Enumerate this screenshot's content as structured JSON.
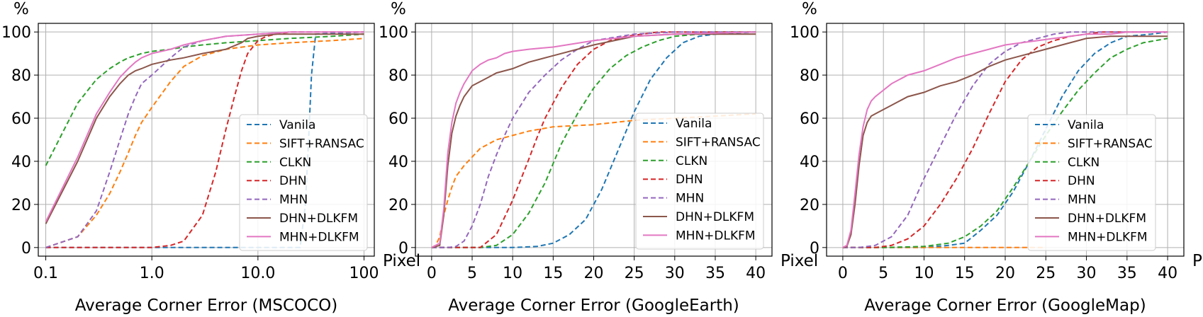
{
  "legend_labels": [
    "Vanila",
    "SIFT+RANSAC",
    "CLKN",
    "DHN",
    "MHN",
    "DHN+DLKFM",
    "MHN+DLKFM"
  ],
  "colors": {
    "Vanila": "#1f77b4",
    "SIFT+RANSAC": "#ff7f0e",
    "CLKN": "#2ca02c",
    "DHN": "#d62728",
    "MHN": "#9467bd",
    "DHN+DLKFM": "#8c564b",
    "MHN+DLKFM": "#e377c2"
  },
  "dashed": {
    "Vanila": true,
    "SIFT+RANSAC": true,
    "CLKN": true,
    "DHN": true,
    "MHN": true,
    "DHN+DLKFM": false,
    "MHN+DLKFM": false
  },
  "chart_data": [
    {
      "type": "line",
      "xlabel": "Average Corner Error (MSCOCO)",
      "ylabel": "%",
      "x_unit": "Pixel",
      "xscale": "log",
      "xlim": [
        0.085,
        125
      ],
      "ylim": [
        -4,
        104
      ],
      "xticks": [
        0.1,
        1,
        10,
        100
      ],
      "xtick_labels": [
        "0.1",
        "1.0",
        "10.0",
        "100"
      ],
      "yticks": [
        0,
        20,
        40,
        60,
        80,
        100
      ],
      "ytick_labels": [
        "0",
        "20",
        "40",
        "60",
        "80",
        "100"
      ],
      "legend_position": "center-right",
      "series": [
        {
          "name": "Vanila",
          "x": [
            0.1,
            1,
            10,
            25,
            28,
            30,
            32,
            35,
            100
          ],
          "y": [
            0,
            0,
            0,
            0,
            20,
            50,
            80,
            99,
            100
          ]
        },
        {
          "name": "SIFT+RANSAC",
          "x": [
            0.1,
            0.2,
            0.3,
            0.4,
            0.5,
            0.6,
            0.7,
            0.8,
            1,
            1.5,
            2,
            3,
            5,
            10,
            20,
            50,
            100
          ],
          "y": [
            0,
            5,
            15,
            25,
            35,
            44,
            52,
            58,
            65,
            77,
            84,
            89,
            92,
            94,
            95,
            96,
            97
          ]
        },
        {
          "name": "CLKN",
          "x": [
            0.1,
            0.15,
            0.2,
            0.3,
            0.4,
            0.5,
            0.6,
            0.7,
            0.8,
            1,
            1.5,
            2,
            3,
            5,
            10,
            20,
            50,
            100
          ],
          "y": [
            38,
            55,
            67,
            78,
            83,
            86,
            88,
            89,
            90,
            91,
            92,
            93,
            94,
            95,
            96,
            97,
            98,
            99
          ]
        },
        {
          "name": "DHN",
          "x": [
            0.1,
            1,
            1.5,
            2,
            3,
            4,
            5,
            6,
            7,
            8,
            10,
            12,
            15,
            20,
            100
          ],
          "y": [
            0,
            0,
            1,
            3,
            15,
            35,
            55,
            70,
            82,
            90,
            96,
            98,
            99,
            100,
            100
          ]
        },
        {
          "name": "MHN",
          "x": [
            0.1,
            0.2,
            0.3,
            0.4,
            0.5,
            0.6,
            0.7,
            0.8,
            1,
            1.5,
            2,
            3,
            5,
            10,
            20,
            100
          ],
          "y": [
            0,
            5,
            17,
            35,
            50,
            62,
            70,
            76,
            80,
            88,
            93,
            96,
            98,
            99,
            100,
            100
          ]
        },
        {
          "name": "DHN+DLKFM",
          "x": [
            0.1,
            0.2,
            0.3,
            0.4,
            0.5,
            0.6,
            0.7,
            0.8,
            1,
            1.5,
            2,
            3,
            5,
            7,
            8,
            10,
            15,
            20,
            100
          ],
          "y": [
            11,
            40,
            60,
            70,
            76,
            80,
            82,
            83,
            85,
            87,
            88,
            90,
            92,
            95,
            97,
            98,
            99,
            99,
            99
          ]
        },
        {
          "name": "MHN+DLKFM",
          "x": [
            0.1,
            0.2,
            0.3,
            0.4,
            0.5,
            0.6,
            0.7,
            0.8,
            1,
            1.5,
            2,
            3,
            5,
            10,
            20,
            100
          ],
          "y": [
            12,
            42,
            62,
            72,
            79,
            83,
            86,
            88,
            90,
            92,
            94,
            96,
            98,
            99,
            100,
            100
          ]
        }
      ]
    },
    {
      "type": "line",
      "xlabel": "Average Corner Error (GoogleEarth)",
      "ylabel": "%",
      "x_unit": "Pixel",
      "xscale": "linear",
      "xlim": [
        -2,
        42
      ],
      "ylim": [
        -4,
        104
      ],
      "xticks": [
        0,
        5,
        10,
        15,
        20,
        25,
        30,
        35,
        40
      ],
      "xtick_labels": [
        "0",
        "5",
        "10",
        "15",
        "20",
        "25",
        "30",
        "35",
        "40"
      ],
      "yticks": [
        0,
        20,
        40,
        60,
        80,
        100
      ],
      "ytick_labels": [
        "0",
        "20",
        "40",
        "60",
        "80",
        "100"
      ],
      "legend_position": "bottom-right",
      "series": [
        {
          "name": "Vanila",
          "x": [
            0,
            10,
            13,
            15,
            17,
            19,
            21,
            23,
            25,
            27,
            29,
            31,
            33,
            35,
            40
          ],
          "y": [
            0,
            0,
            0.5,
            2,
            6,
            13,
            27,
            45,
            63,
            78,
            88,
            95,
            98,
            99,
            100
          ]
        },
        {
          "name": "SIFT+RANSAC",
          "x": [
            0,
            0.5,
            1,
            1.5,
            2,
            2.5,
            3,
            4,
            5,
            6,
            7,
            8,
            10,
            12,
            15,
            20,
            25,
            30,
            35,
            40
          ],
          "y": [
            0,
            1,
            5,
            15,
            22,
            28,
            33,
            38,
            42,
            46,
            48,
            50,
            52,
            54,
            56,
            57,
            59,
            60,
            61,
            62
          ]
        },
        {
          "name": "CLKN",
          "x": [
            0,
            6,
            8,
            10,
            12,
            14,
            16,
            18,
            20,
            22,
            24,
            26,
            28,
            30,
            33,
            35,
            40
          ],
          "y": [
            0,
            0,
            1,
            6,
            16,
            30,
            48,
            62,
            74,
            83,
            89,
            93,
            96,
            98,
            99,
            100,
            100
          ]
        },
        {
          "name": "DHN",
          "x": [
            0,
            6,
            8,
            10,
            12,
            13,
            14,
            15,
            16,
            18,
            20,
            22,
            24,
            26,
            28,
            30,
            40
          ],
          "y": [
            0,
            0,
            6,
            22,
            41,
            51,
            60,
            67,
            74,
            85,
            92,
            96,
            98,
            99,
            100,
            100,
            100
          ]
        },
        {
          "name": "MHN",
          "x": [
            0,
            2,
            3,
            4,
            5,
            6,
            7,
            8,
            9,
            10,
            11,
            12,
            14,
            16,
            18,
            20,
            25,
            30,
            40
          ],
          "y": [
            0,
            0,
            0.5,
            3,
            10,
            20,
            33,
            43,
            52,
            60,
            66,
            72,
            80,
            87,
            92,
            96,
            99,
            100,
            100
          ]
        },
        {
          "name": "DHN+DLKFM",
          "x": [
            0,
            1,
            1.5,
            2,
            2.5,
            3,
            3.5,
            4,
            5,
            6,
            7,
            8,
            10,
            12,
            15,
            18,
            20,
            25,
            30,
            35,
            40
          ],
          "y": [
            0,
            1,
            15,
            38,
            53,
            61,
            66,
            70,
            75,
            77,
            79,
            81,
            83,
            86,
            89,
            92,
            94,
            98,
            99,
            99,
            99
          ]
        },
        {
          "name": "MHN+DLKFM",
          "x": [
            0,
            1,
            1.5,
            2,
            2.5,
            3,
            3.5,
            4,
            5,
            6,
            7,
            8,
            9,
            10,
            12,
            15,
            20,
            25,
            30,
            40
          ],
          "y": [
            0,
            2,
            18,
            44,
            58,
            67,
            72,
            76,
            82,
            85,
            87,
            88,
            90,
            91,
            92,
            93,
            96,
            98,
            99,
            100
          ]
        }
      ]
    },
    {
      "type": "line",
      "xlabel": "Average Corner Error (GoogleMap)",
      "ylabel": "%",
      "x_unit": "Pixel",
      "xscale": "linear",
      "xlim": [
        -2,
        42
      ],
      "ylim": [
        -4,
        104
      ],
      "xticks": [
        0,
        5,
        10,
        15,
        20,
        25,
        30,
        35,
        40
      ],
      "xtick_labels": [
        "0",
        "5",
        "10",
        "15",
        "20",
        "25",
        "30",
        "35",
        "40"
      ],
      "yticks": [
        0,
        20,
        40,
        60,
        80,
        100
      ],
      "ytick_labels": [
        "0",
        "20",
        "40",
        "60",
        "80",
        "100"
      ],
      "legend_position": "bottom-right",
      "series": [
        {
          "name": "Vanila",
          "x": [
            0,
            10,
            13,
            15,
            17,
            19,
            21,
            23,
            25,
            27,
            29,
            31,
            33,
            35,
            38,
            40
          ],
          "y": [
            0,
            0,
            1,
            2,
            8,
            15,
            26,
            40,
            55,
            70,
            82,
            90,
            95,
            98,
            99,
            100
          ]
        },
        {
          "name": "SIFT+RANSAC",
          "x": [
            0,
            5,
            10,
            15,
            20,
            25
          ],
          "y": [
            0,
            0,
            0,
            0,
            0,
            0
          ]
        },
        {
          "name": "CLKN",
          "x": [
            0,
            5,
            10,
            13,
            15,
            17,
            19,
            21,
            23,
            25,
            27,
            29,
            31,
            33,
            35,
            37,
            40
          ],
          "y": [
            0,
            0,
            0.5,
            2,
            5,
            10,
            17,
            28,
            40,
            52,
            63,
            73,
            81,
            88,
            92,
            95,
            97
          ]
        },
        {
          "name": "DHN",
          "x": [
            0,
            4,
            6,
            8,
            10,
            12,
            14,
            16,
            18,
            20,
            22,
            24,
            26,
            28,
            30,
            32,
            35,
            40
          ],
          "y": [
            0,
            0,
            1,
            4,
            10,
            20,
            32,
            46,
            62,
            77,
            87,
            93,
            96,
            98,
            99,
            100,
            100,
            100
          ]
        },
        {
          "name": "MHN",
          "x": [
            0,
            2,
            4,
            6,
            8,
            10,
            12,
            14,
            16,
            18,
            20,
            22,
            24,
            26,
            28,
            30,
            35,
            40
          ],
          "y": [
            0,
            0,
            1,
            5,
            15,
            32,
            47,
            62,
            75,
            85,
            91,
            95,
            97,
            99,
            100,
            100,
            100,
            100
          ]
        },
        {
          "name": "DHN+DLKFM",
          "x": [
            0,
            0.5,
            1,
            1.5,
            2,
            2.5,
            3,
            3.5,
            4,
            6,
            8,
            10,
            12,
            14,
            16,
            18,
            20,
            22,
            24,
            26,
            28,
            30,
            33,
            35,
            40
          ],
          "y": [
            0,
            0.5,
            6,
            20,
            38,
            52,
            58,
            61,
            62,
            66,
            70,
            72,
            75,
            77,
            80,
            84,
            87,
            89,
            91,
            93,
            95,
            97,
            98,
            98,
            98
          ]
        },
        {
          "name": "MHN+DLKFM",
          "x": [
            0,
            0.5,
            1,
            1.5,
            2,
            2.5,
            3,
            3.5,
            4,
            6,
            8,
            10,
            12,
            14,
            16,
            18,
            20,
            22,
            24,
            26,
            28,
            30,
            33,
            35,
            40
          ],
          "y": [
            0,
            1,
            8,
            25,
            43,
            56,
            64,
            68,
            70,
            76,
            80,
            82,
            85,
            88,
            90,
            92,
            94,
            95,
            96,
            97,
            98,
            99,
            99,
            100,
            100
          ]
        }
      ]
    }
  ]
}
